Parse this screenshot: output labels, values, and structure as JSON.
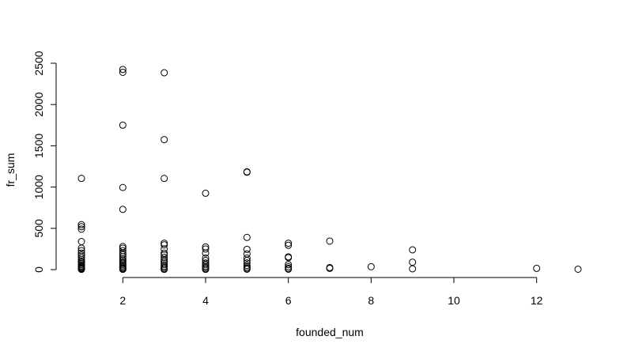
{
  "chart_data": {
    "type": "scatter",
    "title": "",
    "xlabel": "founded_num",
    "ylabel": "fr_sum",
    "xlim": [
      1,
      13
    ],
    "ylim": [
      0,
      2500
    ],
    "x_ticks": [
      2,
      4,
      6,
      8,
      10,
      12
    ],
    "y_ticks": [
      0,
      500,
      1000,
      1500,
      2000,
      2500
    ],
    "x_tick_labels": [
      "2",
      "4",
      "6",
      "8",
      "10",
      "12"
    ],
    "y_tick_labels": [
      "0",
      "500",
      "1000",
      "1500",
      "2000",
      "2500"
    ],
    "marker": "open-circle",
    "grid": false,
    "points": [
      [
        1,
        1105
      ],
      [
        1,
        545
      ],
      [
        1,
        520
      ],
      [
        1,
        490
      ],
      [
        1,
        340
      ],
      [
        1,
        260
      ],
      [
        1,
        230
      ],
      [
        1,
        200
      ],
      [
        1,
        175
      ],
      [
        1,
        150
      ],
      [
        1,
        125
      ],
      [
        1,
        105
      ],
      [
        1,
        90
      ],
      [
        1,
        75
      ],
      [
        1,
        60
      ],
      [
        1,
        45
      ],
      [
        1,
        35
      ],
      [
        1,
        25
      ],
      [
        1,
        15
      ],
      [
        1,
        8
      ],
      [
        1,
        3
      ],
      [
        2,
        2425
      ],
      [
        2,
        2390
      ],
      [
        2,
        1750
      ],
      [
        2,
        995
      ],
      [
        2,
        730
      ],
      [
        2,
        280
      ],
      [
        2,
        260
      ],
      [
        2,
        230
      ],
      [
        2,
        200
      ],
      [
        2,
        180
      ],
      [
        2,
        155
      ],
      [
        2,
        130
      ],
      [
        2,
        110
      ],
      [
        2,
        90
      ],
      [
        2,
        75
      ],
      [
        2,
        60
      ],
      [
        2,
        45
      ],
      [
        2,
        30
      ],
      [
        2,
        18
      ],
      [
        2,
        8
      ],
      [
        2,
        3
      ],
      [
        3,
        2385
      ],
      [
        3,
        1575
      ],
      [
        3,
        1105
      ],
      [
        3,
        320
      ],
      [
        3,
        300
      ],
      [
        3,
        250
      ],
      [
        3,
        200
      ],
      [
        3,
        180
      ],
      [
        3,
        150
      ],
      [
        3,
        120
      ],
      [
        3,
        100
      ],
      [
        3,
        80
      ],
      [
        3,
        60
      ],
      [
        3,
        40
      ],
      [
        3,
        25
      ],
      [
        3,
        10
      ],
      [
        3,
        3
      ],
      [
        4,
        925
      ],
      [
        4,
        275
      ],
      [
        4,
        250
      ],
      [
        4,
        200
      ],
      [
        4,
        140
      ],
      [
        4,
        110
      ],
      [
        4,
        80
      ],
      [
        4,
        60
      ],
      [
        4,
        40
      ],
      [
        4,
        25
      ],
      [
        4,
        10
      ],
      [
        4,
        3
      ],
      [
        5,
        1185
      ],
      [
        5,
        1180
      ],
      [
        5,
        390
      ],
      [
        5,
        245
      ],
      [
        5,
        190
      ],
      [
        5,
        140
      ],
      [
        5,
        110
      ],
      [
        5,
        80
      ],
      [
        5,
        50
      ],
      [
        5,
        30
      ],
      [
        5,
        15
      ],
      [
        5,
        5
      ],
      [
        6,
        320
      ],
      [
        6,
        295
      ],
      [
        6,
        155
      ],
      [
        6,
        145
      ],
      [
        6,
        60
      ],
      [
        6,
        35
      ],
      [
        6,
        15
      ],
      [
        6,
        5
      ],
      [
        7,
        345
      ],
      [
        7,
        25
      ],
      [
        7,
        15
      ],
      [
        8,
        35
      ],
      [
        9,
        240
      ],
      [
        9,
        90
      ],
      [
        9,
        10
      ],
      [
        12,
        15
      ],
      [
        13,
        5
      ]
    ]
  }
}
